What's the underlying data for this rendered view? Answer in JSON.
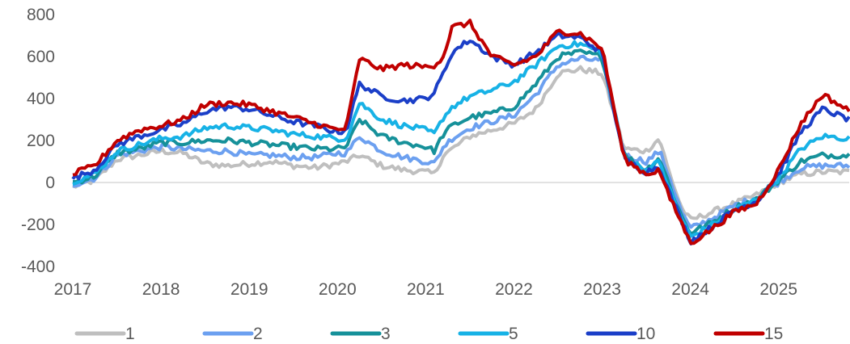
{
  "chart_data": {
    "type": "line",
    "title": "",
    "xlabel": "",
    "ylabel": "",
    "x_ticks": [
      "2017",
      "2018",
      "2019",
      "2020",
      "2021",
      "2022",
      "2023",
      "2024",
      "2025"
    ],
    "y_ticks": [
      "800",
      "600",
      "400",
      "200",
      "0",
      "-200",
      "-400"
    ],
    "xlim": [
      2017.0,
      2025.8
    ],
    "ylim": [
      -400,
      800
    ],
    "grid": false,
    "zero_line": true,
    "legend_position": "bottom",
    "x": [
      2017.0,
      2017.25,
      2017.5,
      2017.75,
      2018.0,
      2018.25,
      2018.5,
      2018.75,
      2019.0,
      2019.25,
      2019.5,
      2019.75,
      2020.0,
      2020.1,
      2020.25,
      2020.5,
      2020.75,
      2021.0,
      2021.1,
      2021.2,
      2021.3,
      2021.5,
      2021.75,
      2022.0,
      2022.25,
      2022.5,
      2022.75,
      2023.0,
      2023.25,
      2023.5,
      2023.65,
      2023.75,
      2023.9,
      2024.0,
      2024.25,
      2024.5,
      2024.75,
      2025.0,
      2025.25,
      2025.5,
      2025.8
    ],
    "series": [
      {
        "name": "1",
        "color": "#BFBFBF",
        "values": [
          -20,
          10,
          110,
          130,
          150,
          140,
          90,
          80,
          90,
          100,
          80,
          70,
          90,
          100,
          130,
          80,
          60,
          50,
          40,
          130,
          160,
          220,
          250,
          280,
          350,
          520,
          540,
          520,
          160,
          150,
          210,
          60,
          -120,
          -180,
          -140,
          -100,
          -60,
          0,
          40,
          50,
          50
        ]
      },
      {
        "name": "2",
        "color": "#6CA0F0",
        "values": [
          -10,
          20,
          130,
          150,
          170,
          160,
          150,
          150,
          130,
          130,
          120,
          120,
          140,
          140,
          220,
          150,
          120,
          100,
          90,
          170,
          210,
          260,
          290,
          320,
          420,
          560,
          590,
          580,
          130,
          100,
          150,
          40,
          -140,
          -220,
          -170,
          -110,
          -70,
          0,
          70,
          80,
          80
        ]
      },
      {
        "name": "3",
        "color": "#16919A",
        "values": [
          0,
          30,
          140,
          160,
          190,
          190,
          200,
          200,
          190,
          180,
          170,
          160,
          160,
          170,
          300,
          220,
          190,
          170,
          150,
          230,
          270,
          310,
          330,
          360,
          470,
          600,
          620,
          600,
          130,
          60,
          120,
          0,
          -160,
          -240,
          -190,
          -120,
          -80,
          10,
          100,
          130,
          130
        ]
      },
      {
        "name": "5",
        "color": "#17B2E6",
        "values": [
          5,
          40,
          150,
          180,
          210,
          220,
          260,
          270,
          260,
          250,
          230,
          220,
          210,
          210,
          380,
          300,
          270,
          250,
          230,
          310,
          360,
          410,
          440,
          480,
          560,
          650,
          660,
          620,
          120,
          60,
          100,
          -20,
          -170,
          -260,
          -200,
          -130,
          -80,
          20,
          160,
          220,
          210
        ]
      },
      {
        "name": "10",
        "color": "#1B3FC8",
        "values": [
          20,
          60,
          180,
          220,
          250,
          280,
          340,
          360,
          350,
          320,
          290,
          270,
          240,
          250,
          470,
          410,
          390,
          400,
          430,
          520,
          620,
          680,
          600,
          560,
          620,
          700,
          690,
          620,
          110,
          50,
          80,
          -40,
          -180,
          -280,
          -210,
          -130,
          -90,
          40,
          240,
          350,
          300
        ]
      },
      {
        "name": "15",
        "color": "#C00000",
        "values": [
          40,
          80,
          200,
          250,
          270,
          300,
          370,
          380,
          370,
          340,
          310,
          280,
          250,
          260,
          590,
          540,
          560,
          550,
          560,
          600,
          740,
          760,
          600,
          560,
          600,
          720,
          710,
          640,
          110,
          40,
          60,
          -60,
          -190,
          -290,
          -220,
          -140,
          -100,
          60,
          280,
          420,
          340
        ]
      }
    ]
  }
}
